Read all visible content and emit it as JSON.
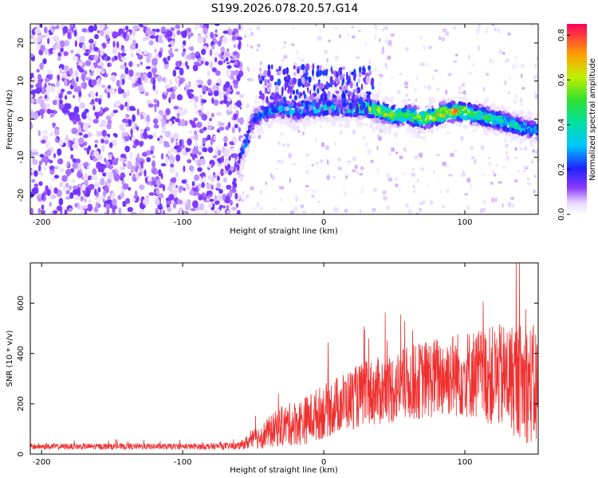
{
  "title": "S199.2026.078.20.57.G14",
  "colors": {
    "snr_line": "#f03030",
    "axis": "#000000"
  },
  "chart_data": [
    {
      "type": "heatmap",
      "xlabel": "Height of straight line (km)",
      "ylabel": "Frequency (Hz)",
      "xlim": [
        -208,
        152
      ],
      "ylim": [
        -25,
        25
      ],
      "xticks": [
        -200,
        -100,
        0,
        100
      ],
      "yticks": [
        -20,
        -10,
        0,
        10,
        20
      ],
      "colorbar": {
        "label": "Normalized spectral amplitude",
        "range": [
          0.0,
          0.85
        ],
        "ticks": [
          "0.0",
          "0.2",
          "0.4",
          "0.6",
          "0.8"
        ],
        "colormap": "rainbow"
      },
      "ridge_x": [
        -60,
        -55,
        -50,
        -40,
        -30,
        -20,
        -10,
        0,
        10,
        20,
        30,
        40,
        50,
        60,
        70,
        80,
        90,
        100,
        110,
        120,
        130,
        140,
        150
      ],
      "ridge_freq": [
        -11,
        -6,
        0,
        2,
        3,
        2,
        3,
        3,
        3,
        3,
        3,
        2,
        1,
        1,
        0,
        1,
        2,
        2,
        1,
        0,
        -1,
        -2,
        -3
      ],
      "ridge_peak_amplitude": [
        0.25,
        0.3,
        0.3,
        0.35,
        0.4,
        0.4,
        0.45,
        0.45,
        0.5,
        0.55,
        0.6,
        0.7,
        0.7,
        0.65,
        0.7,
        0.85,
        0.85,
        0.75,
        0.6,
        0.55,
        0.5,
        0.45,
        0.35
      ]
    },
    {
      "type": "line",
      "xlabel": "Height of straight line (km)",
      "ylabel": "SNR (10 * v/v)",
      "xlim": [
        -208,
        152
      ],
      "ylim": [
        0,
        760
      ],
      "xticks": [
        -200,
        -100,
        0,
        100
      ],
      "yticks": [
        0,
        200,
        400,
        600
      ],
      "series": [
        {
          "x": [
            -208,
            -180,
            -150,
            -120,
            -90,
            -60,
            -45,
            -30,
            -15,
            0,
            15,
            30,
            45,
            60,
            75,
            90,
            105,
            120,
            135,
            145,
            152
          ],
          "mean": [
            30,
            30,
            30,
            30,
            30,
            32,
            70,
            110,
            130,
            170,
            210,
            240,
            255,
            280,
            300,
            315,
            320,
            310,
            300,
            280,
            260
          ],
          "spread": [
            12,
            12,
            12,
            12,
            12,
            14,
            50,
            80,
            95,
            110,
            120,
            130,
            140,
            150,
            160,
            170,
            180,
            200,
            230,
            240,
            250
          ]
        }
      ]
    }
  ]
}
